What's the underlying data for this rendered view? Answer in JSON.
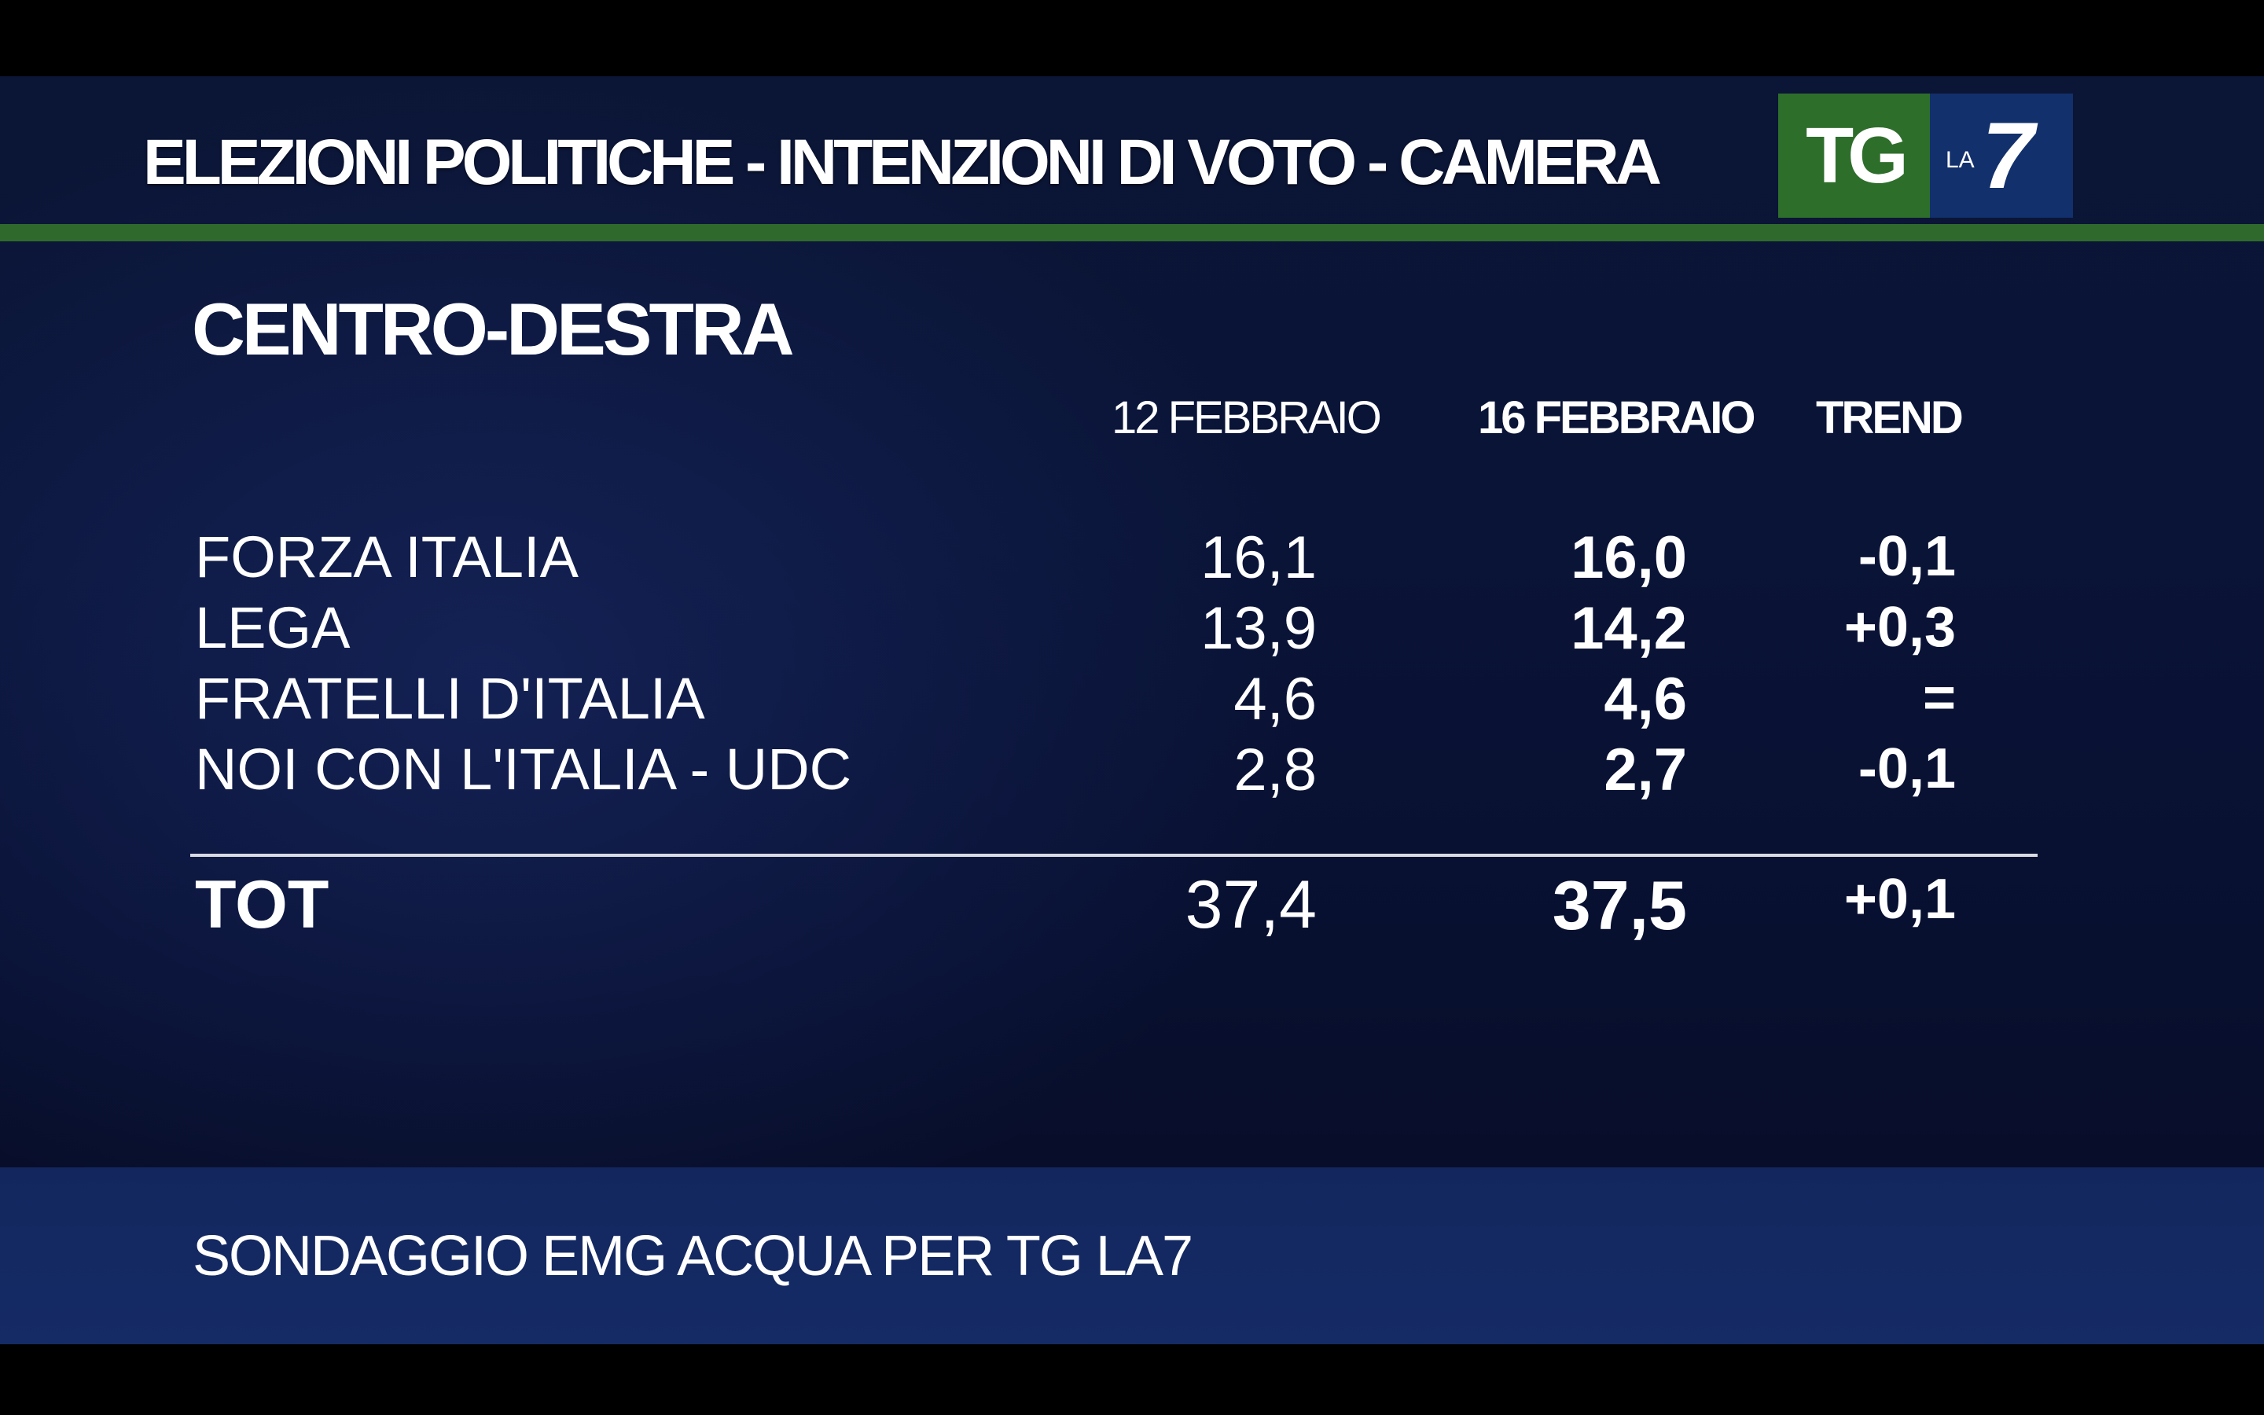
{
  "header": {
    "title": "ELEZIONI POLITICHE - INTENZIONI DI VOTO - CAMERA",
    "logo": {
      "tg": "TG",
      "la": "LA",
      "seven": "7"
    }
  },
  "colors": {
    "background": "#0a1437",
    "accent_green": "#2f6a2c",
    "logo_blue": "#12306b",
    "footer": "#152b66"
  },
  "section_title": "CENTRO-DESTRA",
  "columns": [
    "12 FEBBRAIO",
    "16 FEBBRAIO",
    "TREND"
  ],
  "rows": [
    {
      "party": "FORZA ITALIA",
      "v12": "16,1",
      "v16": "16,0",
      "trend": "-0,1"
    },
    {
      "party": "LEGA",
      "v12": "13,9",
      "v16": "14,2",
      "trend": "+0,3"
    },
    {
      "party": "FRATELLI D'ITALIA",
      "v12": "4,6",
      "v16": "4,6",
      "trend": "="
    },
    {
      "party": "NOI CON L'ITALIA - UDC",
      "v12": "2,8",
      "v16": "2,7",
      "trend": "-0,1"
    }
  ],
  "total": {
    "label": "TOT",
    "v12": "37,4",
    "v16": "37,5",
    "trend": "+0,1"
  },
  "footer": "SONDAGGIO EMG ACQUA PER TG LA7"
}
